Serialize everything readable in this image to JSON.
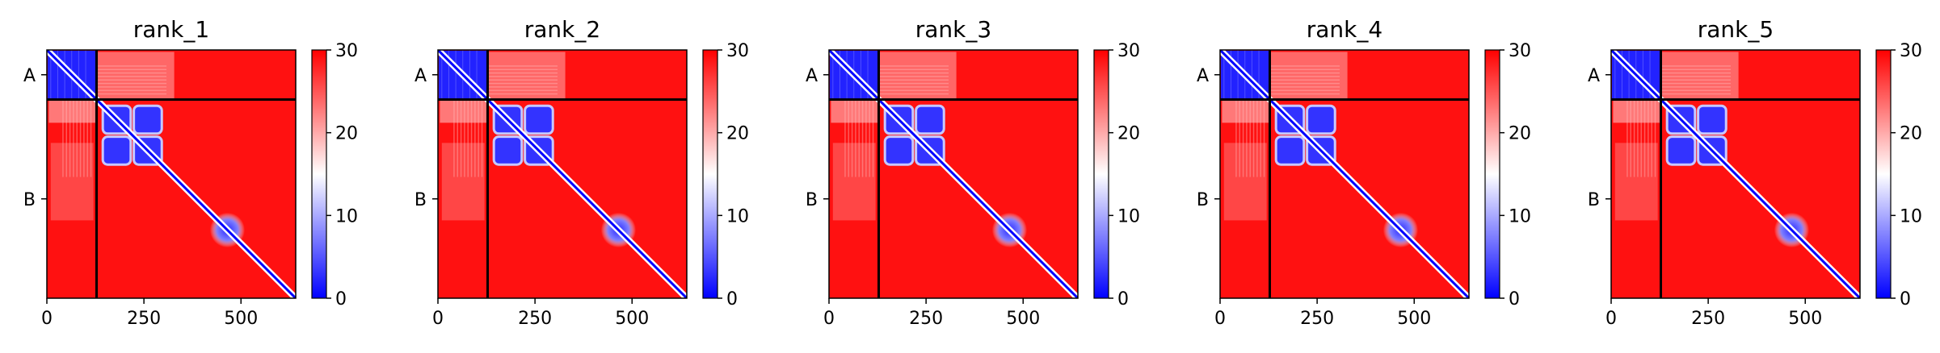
{
  "chart_data": {
    "type": "heatmap",
    "shared": {
      "x_ticks": [
        0,
        250,
        500
      ],
      "x_range": [
        0,
        641
      ],
      "chain_boundary": 128,
      "chains": [
        {
          "label": "A",
          "start": 0,
          "end": 128
        },
        {
          "label": "B",
          "start": 128,
          "end": 641
        }
      ],
      "colorbar": {
        "min": 0,
        "max": 30,
        "ticks": [
          0,
          10,
          20,
          30
        ],
        "colors": [
          "#0000ff",
          "#ffffff",
          "#ff0000"
        ]
      },
      "low_error_blocks": [
        {
          "x": [
            0,
            128
          ],
          "y": [
            0,
            128
          ],
          "value": 2
        },
        {
          "x": [
            140,
            300
          ],
          "y": [
            140,
            300
          ],
          "value": 3
        },
        {
          "x": [
            420,
            510
          ],
          "y": [
            420,
            510
          ],
          "value": 8
        }
      ],
      "background_value": 29
    },
    "panels": [
      {
        "title": "rank_1"
      },
      {
        "title": "rank_2"
      },
      {
        "title": "rank_3"
      },
      {
        "title": "rank_4"
      },
      {
        "title": "rank_5"
      }
    ]
  }
}
